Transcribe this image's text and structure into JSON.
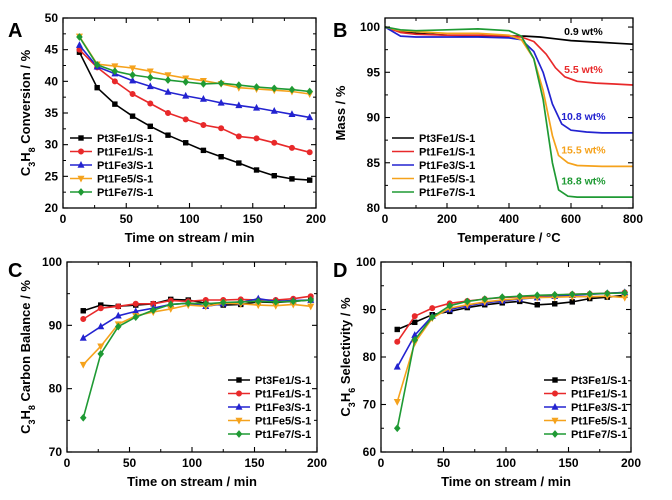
{
  "chart_data": [
    {
      "panel": "A",
      "type": "line",
      "title": "",
      "xlabel": "Time on stream / min",
      "ylabel": "C3H8 Conversion / %",
      "ylabel_parts": [
        "C",
        "3",
        "H",
        "8",
        " Conversion / %"
      ],
      "xlim": [
        0,
        200
      ],
      "ylim": [
        20,
        50
      ],
      "xticks": [
        0,
        50,
        100,
        150,
        200
      ],
      "yticks": [
        20,
        25,
        30,
        35,
        40,
        45,
        50
      ],
      "legend_position": "bottom-left",
      "series": [
        {
          "name": "Pt3Fe1/S-1",
          "color": "#000000",
          "marker": "square",
          "x": [
            13,
            27,
            41,
            55,
            69,
            83,
            97,
            111,
            125,
            139,
            153,
            167,
            181,
            195
          ],
          "y": [
            44.6,
            39.0,
            36.4,
            34.5,
            32.9,
            31.5,
            30.3,
            29.1,
            28.1,
            27.1,
            26.0,
            25.1,
            24.6,
            24.4
          ]
        },
        {
          "name": "Pt1Fe1/S-1",
          "color": "#e8292a",
          "marker": "circle",
          "x": [
            13,
            27,
            41,
            55,
            69,
            83,
            97,
            111,
            125,
            139,
            153,
            167,
            181,
            195
          ],
          "y": [
            45.0,
            42.2,
            40.0,
            38.0,
            36.5,
            35.0,
            34.0,
            33.1,
            32.6,
            31.3,
            31.0,
            30.3,
            29.5,
            28.8
          ]
        },
        {
          "name": "Pt1Fe3/S-1",
          "color": "#2323d0",
          "marker": "triangle-up",
          "x": [
            13,
            27,
            41,
            55,
            69,
            83,
            97,
            111,
            125,
            139,
            153,
            167,
            181,
            195
          ],
          "y": [
            45.7,
            42.3,
            41.2,
            40.1,
            39.2,
            38.3,
            37.7,
            37.2,
            36.6,
            36.2,
            35.8,
            35.3,
            34.8,
            34.3
          ]
        },
        {
          "name": "Pt1Fe5/S-1",
          "color": "#f5a21c",
          "marker": "triangle-down",
          "x": [
            13,
            27,
            41,
            55,
            69,
            83,
            97,
            111,
            125,
            139,
            153,
            167,
            181,
            195
          ],
          "y": [
            47.1,
            42.7,
            42.4,
            42.1,
            41.6,
            41.0,
            40.5,
            40.1,
            39.6,
            39.0,
            38.8,
            38.6,
            38.4,
            38.0
          ]
        },
        {
          "name": "Pt1Fe7/S-1",
          "color": "#1f9a34",
          "marker": "diamond",
          "x": [
            13,
            27,
            41,
            55,
            69,
            83,
            97,
            111,
            125,
            139,
            153,
            167,
            181,
            195
          ],
          "y": [
            47.0,
            42.6,
            41.6,
            41.0,
            40.6,
            40.2,
            39.9,
            39.6,
            39.7,
            39.4,
            39.1,
            38.9,
            38.7,
            38.4
          ]
        }
      ]
    },
    {
      "panel": "B",
      "type": "line",
      "title": "",
      "xlabel": "Temperature / °C",
      "ylabel": "Mass / %",
      "xlim": [
        0,
        800
      ],
      "ylim": [
        80,
        101
      ],
      "xticks": [
        0,
        200,
        400,
        600,
        800
      ],
      "yticks": [
        80,
        85,
        90,
        95,
        100
      ],
      "legend_position": "bottom-left",
      "series": [
        {
          "name": "Pt3Fe1/S-1",
          "color": "#000000",
          "x": [
            0,
            50,
            100,
            200,
            300,
            400,
            450,
            500,
            550,
            600,
            650,
            700,
            750,
            800
          ],
          "y": [
            100.0,
            99.5,
            99.3,
            99.1,
            99.0,
            99.0,
            99.0,
            98.9,
            98.7,
            98.5,
            98.4,
            98.3,
            98.2,
            98.1
          ]
        },
        {
          "name": "Pt1Fe1/S-1",
          "color": "#e8292a",
          "x": [
            0,
            50,
            100,
            200,
            300,
            400,
            440,
            480,
            520,
            550,
            580,
            620,
            680,
            740,
            800
          ],
          "y": [
            100.0,
            99.4,
            99.2,
            99.1,
            99.1,
            99.0,
            98.9,
            98.4,
            97.0,
            95.5,
            94.5,
            94.0,
            93.8,
            93.7,
            93.6
          ]
        },
        {
          "name": "Pt1Fe3/S-1",
          "color": "#2323d0",
          "x": [
            0,
            50,
            100,
            200,
            300,
            400,
            440,
            480,
            510,
            540,
            570,
            600,
            650,
            700,
            800
          ],
          "y": [
            100.0,
            99.0,
            98.9,
            98.9,
            98.9,
            98.8,
            98.6,
            97.3,
            95.0,
            91.5,
            89.3,
            88.6,
            88.4,
            88.3,
            88.3
          ]
        },
        {
          "name": "Pt1Fe5/S-1",
          "color": "#f5a21c",
          "x": [
            0,
            50,
            100,
            200,
            300,
            400,
            440,
            480,
            510,
            540,
            560,
            590,
            620,
            700,
            800
          ],
          "y": [
            100.0,
            99.6,
            99.5,
            99.3,
            99.3,
            99.1,
            98.6,
            96.5,
            93.0,
            88.0,
            85.8,
            85.0,
            84.7,
            84.6,
            84.6
          ]
        },
        {
          "name": "Pt1Fe7/S-1",
          "color": "#1f9a34",
          "x": [
            0,
            50,
            100,
            200,
            300,
            400,
            440,
            480,
            510,
            540,
            560,
            590,
            620,
            700,
            800
          ],
          "y": [
            100.0,
            99.7,
            99.6,
            99.7,
            99.8,
            99.6,
            99.0,
            96.5,
            92.0,
            85.0,
            82.0,
            81.3,
            81.2,
            81.2,
            81.2
          ]
        }
      ],
      "annotations": [
        {
          "text": "0.9 wt%",
          "color": "#000000",
          "x": 640,
          "y": 99.1
        },
        {
          "text": "5.5 wt%",
          "color": "#e8292a",
          "x": 640,
          "y": 94.9
        },
        {
          "text": "10.8 wt%",
          "color": "#2323d0",
          "x": 640,
          "y": 89.7
        },
        {
          "text": "15.5 wt%",
          "color": "#f5a21c",
          "x": 640,
          "y": 86.0
        },
        {
          "text": "18.8 wt%",
          "color": "#1f9a34",
          "x": 640,
          "y": 82.6
        }
      ]
    },
    {
      "panel": "C",
      "type": "line",
      "title": "",
      "xlabel": "Time on stream / min",
      "ylabel": "C3H8 Carbon Balance / %",
      "ylabel_parts": [
        "C",
        "3",
        "H",
        "8",
        " Carbon Balance / %"
      ],
      "xlim": [
        0,
        200
      ],
      "ylim": [
        70,
        100
      ],
      "xticks": [
        0,
        50,
        100,
        150,
        200
      ],
      "yticks": [
        70,
        80,
        90,
        100
      ],
      "legend_position": "bottom-right",
      "series": [
        {
          "name": "Pt3Fe1/S-1",
          "color": "#000000",
          "marker": "square",
          "x": [
            13,
            27,
            41,
            55,
            69,
            83,
            97,
            111,
            125,
            139,
            153,
            167,
            181,
            195
          ],
          "y": [
            92.3,
            93.2,
            93.0,
            93.2,
            93.4,
            94.1,
            94.0,
            93.5,
            93.2,
            93.3,
            93.7,
            93.6,
            93.8,
            94.0
          ]
        },
        {
          "name": "Pt1Fe1/S-1",
          "color": "#e8292a",
          "marker": "circle",
          "x": [
            13,
            27,
            41,
            55,
            69,
            83,
            97,
            111,
            125,
            139,
            153,
            167,
            181,
            195
          ],
          "y": [
            91.0,
            92.7,
            93.0,
            93.4,
            93.4,
            93.9,
            93.8,
            94.0,
            94.0,
            94.1,
            94.0,
            94.0,
            94.2,
            94.6
          ]
        },
        {
          "name": "Pt1Fe3/S-1",
          "color": "#2323d0",
          "marker": "triangle-up",
          "x": [
            13,
            27,
            41,
            55,
            69,
            83,
            97,
            111,
            125,
            139,
            153,
            167,
            181,
            195
          ],
          "y": [
            88.0,
            89.8,
            91.5,
            92.2,
            92.7,
            93.3,
            93.5,
            93.0,
            93.4,
            93.6,
            94.2,
            93.8,
            93.9,
            94.0
          ]
        },
        {
          "name": "Pt1Fe5/S-1",
          "color": "#f5a21c",
          "marker": "triangle-down",
          "x": [
            13,
            27,
            41,
            55,
            69,
            83,
            97,
            111,
            125,
            139,
            153,
            167,
            181,
            195
          ],
          "y": [
            83.8,
            86.7,
            90.2,
            91.5,
            92.1,
            92.6,
            93.2,
            93.0,
            93.5,
            93.4,
            93.2,
            93.1,
            93.3,
            93.0
          ]
        },
        {
          "name": "Pt1Fe7/S-1",
          "color": "#1f9a34",
          "marker": "diamond",
          "x": [
            13,
            27,
            41,
            55,
            69,
            83,
            97,
            111,
            125,
            139,
            153,
            167,
            181,
            195
          ],
          "y": [
            75.4,
            85.5,
            89.8,
            91.3,
            92.4,
            93.3,
            93.5,
            93.4,
            93.6,
            93.7,
            93.8,
            93.7,
            93.8,
            94.0
          ]
        }
      ]
    },
    {
      "panel": "D",
      "type": "line",
      "title": "",
      "xlabel": "Time on stream / min",
      "ylabel": "C3H6 Selectivity / %",
      "ylabel_parts": [
        "C",
        "3",
        "H",
        "6",
        " Selectivity / %"
      ],
      "xlim": [
        0,
        200
      ],
      "ylim": [
        60,
        100
      ],
      "xticks": [
        0,
        50,
        100,
        150,
        200
      ],
      "yticks": [
        60,
        70,
        80,
        90,
        100
      ],
      "legend_position": "bottom-right",
      "series": [
        {
          "name": "Pt3Fe1/S-1",
          "color": "#000000",
          "marker": "square",
          "x": [
            13,
            27,
            41,
            55,
            69,
            83,
            97,
            111,
            125,
            139,
            153,
            167,
            181,
            195
          ],
          "y": [
            85.8,
            87.3,
            88.9,
            89.6,
            90.4,
            91.0,
            91.4,
            91.7,
            91.0,
            91.2,
            91.6,
            92.3,
            92.6,
            93.0
          ]
        },
        {
          "name": "Pt1Fe1/S-1",
          "color": "#e8292a",
          "marker": "circle",
          "x": [
            13,
            27,
            41,
            55,
            69,
            83,
            97,
            111,
            125,
            139,
            153,
            167,
            181,
            195
          ],
          "y": [
            83.2,
            88.6,
            90.3,
            91.3,
            91.8,
            92.2,
            92.5,
            92.7,
            92.8,
            93.0,
            93.2,
            93.3,
            93.4,
            93.6
          ]
        },
        {
          "name": "Pt1Fe3/S-1",
          "color": "#2323d0",
          "marker": "triangle-up",
          "x": [
            13,
            27,
            41,
            55,
            69,
            83,
            97,
            111,
            125,
            139,
            153,
            167,
            181,
            195
          ],
          "y": [
            77.9,
            84.6,
            88.6,
            90.0,
            90.8,
            91.4,
            91.8,
            92.2,
            92.5,
            92.8,
            93.0,
            93.2,
            93.4,
            93.6
          ]
        },
        {
          "name": "Pt1Fe5/S-1",
          "color": "#f5a21c",
          "marker": "triangle-down",
          "x": [
            13,
            27,
            41,
            55,
            69,
            83,
            97,
            111,
            125,
            139,
            153,
            167,
            181,
            195
          ],
          "y": [
            70.6,
            83.0,
            88.2,
            90.3,
            91.0,
            91.6,
            92.0,
            92.3,
            92.5,
            92.6,
            92.7,
            92.7,
            92.8,
            92.5
          ]
        },
        {
          "name": "Pt1Fe7/S-1",
          "color": "#1f9a34",
          "marker": "diamond",
          "x": [
            13,
            27,
            41,
            55,
            69,
            83,
            97,
            111,
            125,
            139,
            153,
            167,
            181,
            195
          ],
          "y": [
            65.0,
            83.6,
            88.4,
            90.8,
            91.7,
            92.2,
            92.6,
            92.8,
            93.0,
            93.1,
            93.2,
            93.3,
            93.4,
            93.5
          ]
        }
      ]
    }
  ]
}
